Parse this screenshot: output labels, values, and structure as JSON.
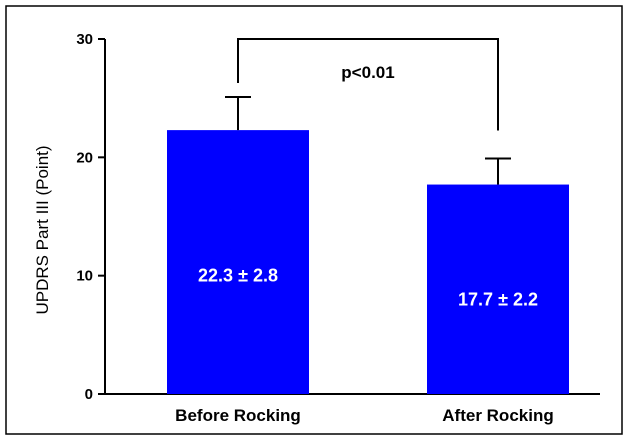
{
  "chart_data": {
    "type": "bar",
    "title": "",
    "xlabel": "",
    "ylabel": "UPDRS Part III (Point)",
    "ylim": [
      0,
      30
    ],
    "yticks": [
      0,
      10,
      20,
      30
    ],
    "grid": false,
    "legend": "none",
    "categories": [
      "Before Rocking",
      "After Rocking"
    ],
    "values": [
      22.3,
      17.7
    ],
    "errors": [
      2.8,
      2.2
    ],
    "error_style": "upper-only",
    "data_labels": [
      "22.3 ± 2.8",
      "17.7 ± 2.2"
    ],
    "significance": {
      "from": 0,
      "to": 1,
      "label": "p<0.01"
    },
    "colors": {
      "bar": "#0000ff",
      "axis": "#000000",
      "frame": "#000000"
    }
  }
}
